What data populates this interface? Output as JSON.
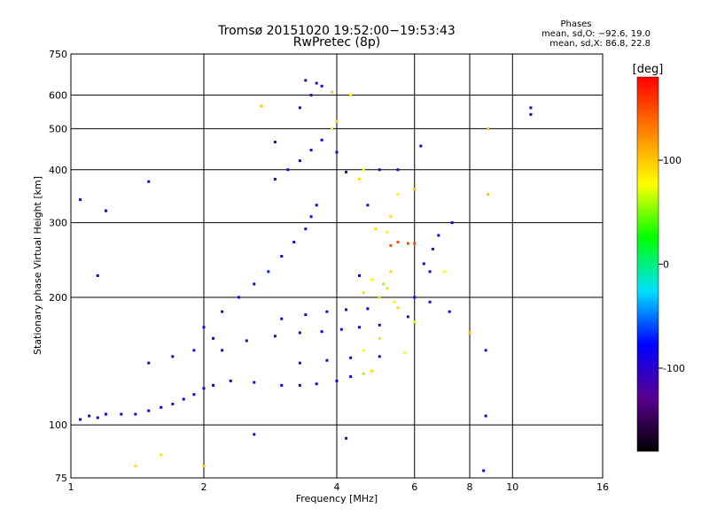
{
  "chart_data": {
    "type": "scatter",
    "title": "Tromsø 20151020 19:52:00−19:53:43",
    "subtitle": "RwPretec (8p)",
    "xlabel": "Frequency [MHz]",
    "ylabel": "Stationary phase Virtual Height [km]",
    "x_scale": "log",
    "y_scale": "log",
    "xlim": [
      1,
      16
    ],
    "ylim": [
      75,
      750
    ],
    "x_ticks": [
      1,
      2,
      4,
      6,
      8,
      10,
      16
    ],
    "y_ticks": [
      75,
      100,
      200,
      300,
      400,
      500,
      600,
      750
    ],
    "grid": true,
    "stats": {
      "heading": "Phases",
      "line_o": "mean, sd,O: −92.6, 19.0",
      "line_x": "mean, sd,X:  86.8, 22.8"
    },
    "colorbar": {
      "label": "[deg]",
      "range": [
        -180,
        180
      ],
      "ticks": [
        100,
        0,
        -100
      ],
      "colors": [
        "#000000",
        "#5a0090",
        "#0000ff",
        "#00e0ff",
        "#00ff00",
        "#ffff00",
        "#ff8000",
        "#ff0000"
      ]
    },
    "series": [
      {
        "points": [
          [
            1.05,
            103,
            -95
          ],
          [
            1.1,
            105,
            -100
          ],
          [
            1.15,
            104,
            -100
          ],
          [
            1.2,
            106,
            -90
          ],
          [
            1.3,
            106,
            -100
          ],
          [
            1.4,
            106,
            -95
          ],
          [
            1.5,
            108,
            -100
          ],
          [
            1.6,
            110,
            -95
          ],
          [
            1.7,
            112,
            -100
          ],
          [
            1.8,
            115,
            -90
          ],
          [
            1.9,
            118,
            -100
          ],
          [
            2.0,
            122,
            -95
          ],
          [
            2.1,
            124,
            -100
          ],
          [
            2.3,
            127,
            -95
          ],
          [
            2.6,
            126,
            -100
          ],
          [
            3.0,
            124,
            -95
          ],
          [
            3.3,
            124,
            -100
          ],
          [
            3.6,
            125,
            -100
          ],
          [
            4.0,
            127,
            -95
          ],
          [
            4.3,
            130,
            -90
          ],
          [
            4.6,
            132,
            60
          ],
          [
            4.8,
            134,
            90
          ],
          [
            2.2,
            150,
            -95
          ],
          [
            2.5,
            158,
            -100
          ],
          [
            2.9,
            162,
            -95
          ],
          [
            3.3,
            165,
            -100
          ],
          [
            3.7,
            166,
            -95
          ],
          [
            4.1,
            168,
            -100
          ],
          [
            4.5,
            170,
            -95
          ],
          [
            5.0,
            172,
            -100
          ],
          [
            3.0,
            178,
            -95
          ],
          [
            3.4,
            182,
            -100
          ],
          [
            3.8,
            185,
            -100
          ],
          [
            4.2,
            187,
            -95
          ],
          [
            4.7,
            188,
            -90
          ],
          [
            5.5,
            189,
            90
          ],
          [
            3.3,
            140,
            -100
          ],
          [
            3.8,
            142,
            -95
          ],
          [
            4.3,
            144,
            -100
          ],
          [
            5.0,
            145,
            -90
          ],
          [
            5.7,
            148,
            80
          ],
          [
            1.5,
            140,
            -100
          ],
          [
            1.7,
            145,
            -95
          ],
          [
            1.9,
            150,
            -90
          ],
          [
            2.1,
            160,
            -95
          ],
          [
            2.0,
            170,
            -100
          ],
          [
            2.2,
            185,
            -95
          ],
          [
            2.4,
            200,
            -90
          ],
          [
            2.6,
            215,
            -80
          ],
          [
            2.8,
            230,
            -70
          ],
          [
            3.0,
            250,
            -95
          ],
          [
            3.2,
            270,
            -100
          ],
          [
            3.4,
            290,
            -95
          ],
          [
            3.5,
            310,
            -100
          ],
          [
            3.6,
            330,
            -90
          ],
          [
            2.9,
            380,
            -100
          ],
          [
            3.1,
            400,
            -95
          ],
          [
            3.3,
            420,
            -100
          ],
          [
            3.5,
            445,
            -95
          ],
          [
            3.7,
            470,
            -90
          ],
          [
            3.9,
            500,
            80
          ],
          [
            4.0,
            520,
            90
          ],
          [
            3.3,
            560,
            -110
          ],
          [
            3.5,
            600,
            -120
          ],
          [
            3.7,
            630,
            -100
          ],
          [
            3.4,
            650,
            -110
          ],
          [
            3.6,
            640,
            -100
          ],
          [
            4.2,
            395,
            -100
          ],
          [
            4.6,
            400,
            80
          ],
          [
            5.0,
            400,
            -100
          ],
          [
            5.5,
            400,
            -110
          ],
          [
            4.9,
            290,
            90
          ],
          [
            5.2,
            285,
            80
          ],
          [
            5.5,
            270,
            150
          ],
          [
            5.8,
            268,
            150
          ],
          [
            6.0,
            268,
            150
          ],
          [
            5.3,
            265,
            150
          ],
          [
            4.5,
            225,
            -100
          ],
          [
            4.8,
            220,
            80
          ],
          [
            5.1,
            215,
            60
          ],
          [
            4.6,
            205,
            90
          ],
          [
            5.0,
            200,
            90
          ],
          [
            5.4,
            195,
            80
          ],
          [
            6.0,
            200,
            -95
          ],
          [
            6.3,
            240,
            -100
          ],
          [
            6.6,
            260,
            -100
          ],
          [
            6.8,
            280,
            -95
          ],
          [
            7.0,
            230,
            80
          ],
          [
            6.5,
            195,
            -95
          ],
          [
            7.2,
            185,
            -100
          ],
          [
            6.0,
            175,
            70
          ],
          [
            5.0,
            160,
            90
          ],
          [
            4.6,
            150,
            80
          ],
          [
            5.8,
            180,
            -100
          ],
          [
            8.0,
            165,
            100
          ],
          [
            8.7,
            150,
            -100
          ],
          [
            8.7,
            105,
            -95
          ],
          [
            8.6,
            78,
            -100
          ],
          [
            8.8,
            350,
            100
          ],
          [
            8.8,
            500,
            100
          ],
          [
            11.0,
            560,
            -100
          ],
          [
            11.0,
            540,
            -90
          ],
          [
            1.15,
            225,
            -100
          ],
          [
            1.2,
            320,
            -100
          ],
          [
            1.05,
            340,
            -110
          ],
          [
            1.5,
            375,
            -100
          ],
          [
            1.6,
            85,
            90
          ],
          [
            1.4,
            80,
            90
          ],
          [
            2.0,
            80,
            100
          ],
          [
            2.6,
            95,
            -95
          ],
          [
            2.9,
            465,
            -100
          ],
          [
            2.7,
            565,
            100
          ],
          [
            3.9,
            610,
            100
          ],
          [
            4.3,
            600,
            80
          ],
          [
            4.0,
            440,
            -100
          ],
          [
            4.5,
            380,
            90
          ],
          [
            4.7,
            330,
            -100
          ],
          [
            5.3,
            310,
            90
          ],
          [
            5.5,
            350,
            80
          ],
          [
            6.2,
            455,
            -100
          ],
          [
            6.0,
            360,
            100
          ],
          [
            5.3,
            230,
            90
          ],
          [
            5.2,
            210,
            90
          ],
          [
            6.5,
            230,
            -95
          ],
          [
            7.3,
            300,
            -100
          ],
          [
            4.2,
            93,
            -95
          ]
        ]
      }
    ]
  }
}
